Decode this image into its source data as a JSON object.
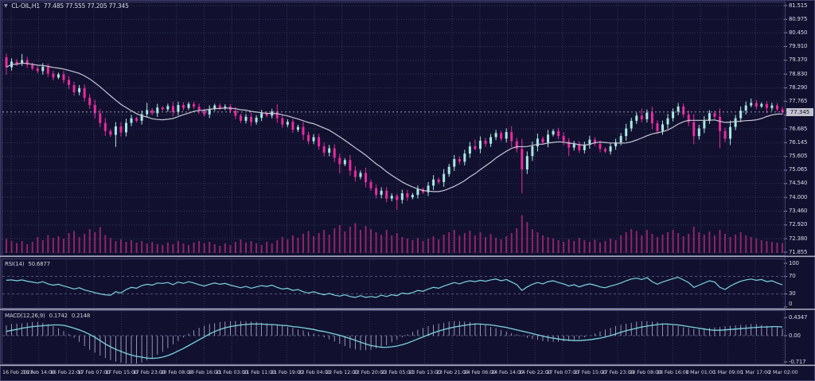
{
  "colors": {
    "background": "#11112f",
    "grid": "#33335c",
    "bull": "#a9e8e0",
    "bear": "#e82b9d",
    "ma_line": "#c6c6d4",
    "volume": "#8f2569",
    "indicator_line": "#7bd4e0",
    "macd_histogram": "#b6b6d4",
    "axis_text": "#9a9ab8",
    "separator": "#a9a9bc",
    "border": "#41416f",
    "level_dashed": "#6a6a98",
    "price_line": "#b0b0c4"
  },
  "header": {
    "symbol_period": "CL-OIL,H1",
    "ohlc_text": "77.485 77.555 77.205 77.345"
  },
  "panes": {
    "rsi": {
      "label": "RSI(14)",
      "value": "50.6877"
    },
    "macd": {
      "label": "MACD(12,26,9)",
      "value_macd": "0.1742",
      "value_signal": "0.2148"
    }
  },
  "price_axis": {
    "current_price": "77.345"
  },
  "chart_data": {
    "type": "candlestick",
    "symbol": "CL-OIL",
    "timeframe": "H1",
    "ohlc_display": {
      "open": 77.485,
      "high": 77.555,
      "low": 77.205,
      "close": 77.345
    },
    "ylim": [
      71.7,
      81.6
    ],
    "grid": true,
    "price_gridlines": [
      81.515,
      80.975,
      80.45,
      79.91,
      79.37,
      78.83,
      78.29,
      77.765,
      77.225,
      76.685,
      76.145,
      75.605,
      75.065,
      74.54,
      74.0,
      73.46,
      72.92,
      72.38,
      71.855
    ],
    "x_labels": [
      "16 Feb 2023",
      "16 Feb 14:00",
      "16 Feb 22:00",
      "17 Feb 07:00",
      "17 Feb 15:00",
      "17 Feb 23:00",
      "20 Feb 08:00",
      "20 Feb 16:00",
      "21 Feb 03:00",
      "21 Feb 11:00",
      "21 Feb 19:00",
      "22 Feb 04:00",
      "22 Feb 12:00",
      "22 Feb 20:00",
      "23 Feb 05:00",
      "23 Feb 13:00",
      "23 Feb 21:00",
      "24 Feb 06:00",
      "24 Feb 14:00",
      "24 Feb 22:00",
      "27 Feb 07:00",
      "27 Feb 15:00",
      "27 Feb 23:00",
      "28 Feb 08:00",
      "28 Feb 16:00",
      "1 Mar 01:00",
      "1 Mar 09:00",
      "1 Mar 17:00",
      "2 Mar 02:00"
    ],
    "ma_period": 14,
    "candles": {
      "first_open": 79.49,
      "closes": [
        79.1,
        79.32,
        79.24,
        79.38,
        79.2,
        79.05,
        78.95,
        79.12,
        78.85,
        78.7,
        78.82,
        78.6,
        78.4,
        78.12,
        78.28,
        77.9,
        77.62,
        77.3,
        76.92,
        76.6,
        76.45,
        76.78,
        76.55,
        76.92,
        77.1,
        77.0,
        77.26,
        77.42,
        77.3,
        77.52,
        77.45,
        77.58,
        77.35,
        77.62,
        77.5,
        77.66,
        77.55,
        77.4,
        77.25,
        77.46,
        77.6,
        77.5,
        77.56,
        77.4,
        77.2,
        77.0,
        77.16,
        76.95,
        77.12,
        77.3,
        77.2,
        77.36,
        77.1,
        76.85,
        76.96,
        76.65,
        76.76,
        76.45,
        76.2,
        76.36,
        76.0,
        75.75,
        75.92,
        75.55,
        75.3,
        75.46,
        75.05,
        74.8,
        74.96,
        74.6,
        74.36,
        74.1,
        74.26,
        73.95,
        74.06,
        73.9,
        74.16,
        74.0,
        74.1,
        74.32,
        74.2,
        74.46,
        74.7,
        74.6,
        74.92,
        75.2,
        75.5,
        75.4,
        75.72,
        76.0,
        75.9,
        76.22,
        76.1,
        76.36,
        76.52,
        76.3,
        76.56,
        76.2,
        75.9,
        75.1,
        75.62,
        76.0,
        76.3,
        76.15,
        76.46,
        76.6,
        76.4,
        76.2,
        75.95,
        76.1,
        75.85,
        76.06,
        76.26,
        76.1,
        75.9,
        75.8,
        76.0,
        76.16,
        76.4,
        76.7,
        77.0,
        77.2,
        77.06,
        77.32,
        76.9,
        76.6,
        76.86,
        77.1,
        77.36,
        77.56,
        77.25,
        76.95,
        76.4,
        76.7,
        77.0,
        77.3,
        77.16,
        76.6,
        76.3,
        76.76,
        77.1,
        77.4,
        77.6,
        77.7,
        77.56,
        77.66,
        77.5,
        77.6,
        77.45,
        77.345
      ],
      "low_spikes": {
        "0": 0.15,
        "21": 0.3,
        "64": 0.2,
        "75": 0.3,
        "99": 0.55,
        "108": 0.2,
        "137": 0.35,
        "146": 0.1
      },
      "high_spikes": {
        "3": 0.15,
        "27": 0.15,
        "52": 0.1,
        "90": 0.2,
        "122": 0.15,
        "143": 0.1
      }
    },
    "volume": [
      0.35,
      0.3,
      0.25,
      0.3,
      0.22,
      0.28,
      0.4,
      0.32,
      0.45,
      0.38,
      0.42,
      0.36,
      0.5,
      0.55,
      0.4,
      0.48,
      0.6,
      0.52,
      0.65,
      0.45,
      0.38,
      0.3,
      0.34,
      0.28,
      0.32,
      0.26,
      0.3,
      0.24,
      0.28,
      0.22,
      0.2,
      0.26,
      0.22,
      0.3,
      0.24,
      0.2,
      0.26,
      0.3,
      0.24,
      0.28,
      0.22,
      0.18,
      0.24,
      0.2,
      0.28,
      0.34,
      0.26,
      0.3,
      0.24,
      0.2,
      0.28,
      0.24,
      0.32,
      0.4,
      0.34,
      0.44,
      0.38,
      0.48,
      0.55,
      0.42,
      0.5,
      0.58,
      0.46,
      0.62,
      0.7,
      0.54,
      0.66,
      0.75,
      0.58,
      0.68,
      0.6,
      0.52,
      0.46,
      0.58,
      0.44,
      0.5,
      0.4,
      0.36,
      0.32,
      0.38,
      0.3,
      0.36,
      0.42,
      0.34,
      0.46,
      0.52,
      0.58,
      0.44,
      0.5,
      0.56,
      0.44,
      0.52,
      0.4,
      0.48,
      0.38,
      0.34,
      0.42,
      0.5,
      0.62,
      0.95,
      0.78,
      0.6,
      0.52,
      0.44,
      0.4,
      0.36,
      0.32,
      0.28,
      0.34,
      0.3,
      0.38,
      0.32,
      0.28,
      0.34,
      0.26,
      0.3,
      0.36,
      0.32,
      0.44,
      0.52,
      0.6,
      0.55,
      0.44,
      0.58,
      0.48,
      0.4,
      0.46,
      0.52,
      0.58,
      0.5,
      0.42,
      0.48,
      0.66,
      0.52,
      0.46,
      0.54,
      0.44,
      0.58,
      0.48,
      0.4,
      0.46,
      0.52,
      0.44,
      0.4,
      0.36,
      0.32,
      0.3,
      0.28,
      0.26,
      0.24
    ],
    "rsi": {
      "period": 14,
      "last": 50.6877,
      "levels": [
        70,
        30
      ],
      "axis_labels": [
        100,
        70,
        30,
        0
      ],
      "values": [
        61,
        62,
        60,
        62,
        59,
        57,
        55,
        58,
        53,
        50,
        52,
        48,
        45,
        41,
        44,
        39,
        36,
        33,
        30,
        28,
        27,
        35,
        32,
        40,
        45,
        43,
        49,
        52,
        50,
        55,
        54,
        56,
        51,
        57,
        54,
        58,
        55,
        51,
        48,
        52,
        55,
        52,
        54,
        50,
        47,
        44,
        47,
        43,
        46,
        49,
        47,
        50,
        45,
        41,
        43,
        38,
        40,
        35,
        32,
        35,
        31,
        28,
        31,
        27,
        25,
        28,
        24,
        22,
        26,
        22,
        24,
        22,
        27,
        24,
        28,
        26,
        32,
        30,
        33,
        38,
        36,
        41,
        45,
        43,
        48,
        52,
        56,
        53,
        57,
        60,
        58,
        61,
        59,
        62,
        64,
        60,
        63,
        57,
        51,
        38,
        46,
        52,
        56,
        53,
        58,
        60,
        56,
        53,
        48,
        51,
        46,
        50,
        53,
        50,
        46,
        44,
        48,
        51,
        55,
        60,
        64,
        66,
        63,
        67,
        58,
        52,
        57,
        61,
        65,
        68,
        62,
        56,
        45,
        50,
        55,
        60,
        57,
        45,
        40,
        48,
        54,
        59,
        62,
        64,
        61,
        63,
        58,
        60,
        55,
        50.7
      ]
    },
    "macd": {
      "fast": 12,
      "slow": 26,
      "signal_period": 9,
      "macd_last": 0.1742,
      "signal_last": 0.2148,
      "axis_labels": [
        "0.4347",
        "0.00",
        "-0.717"
      ],
      "signal_values": [
        0.1,
        0.13,
        0.15,
        0.18,
        0.2,
        0.22,
        0.23,
        0.24,
        0.25,
        0.26,
        0.26,
        0.25,
        0.22,
        0.18,
        0.14,
        0.09,
        0.03,
        -0.04,
        -0.12,
        -0.2,
        -0.27,
        -0.33,
        -0.38,
        -0.43,
        -0.47,
        -0.5,
        -0.52,
        -0.54,
        -0.55,
        -0.54,
        -0.52,
        -0.48,
        -0.43,
        -0.37,
        -0.31,
        -0.24,
        -0.17,
        -0.1,
        -0.03,
        0.04,
        0.1,
        0.15,
        0.19,
        0.22,
        0.24,
        0.26,
        0.27,
        0.28,
        0.28,
        0.28,
        0.27,
        0.27,
        0.26,
        0.25,
        0.24,
        0.22,
        0.21,
        0.19,
        0.17,
        0.15,
        0.12,
        0.1,
        0.07,
        0.04,
        0.01,
        -0.03,
        -0.07,
        -0.11,
        -0.16,
        -0.2,
        -0.24,
        -0.26,
        -0.28,
        -0.28,
        -0.27,
        -0.25,
        -0.22,
        -0.18,
        -0.13,
        -0.08,
        -0.03,
        0.02,
        0.07,
        0.11,
        0.15,
        0.18,
        0.21,
        0.23,
        0.25,
        0.27,
        0.28,
        0.28,
        0.27,
        0.26,
        0.24,
        0.22,
        0.2,
        0.17,
        0.14,
        0.11,
        0.08,
        0.05,
        0.02,
        -0.01,
        -0.04,
        -0.06,
        -0.08,
        -0.1,
        -0.11,
        -0.12,
        -0.12,
        -0.11,
        -0.1,
        -0.08,
        -0.06,
        -0.03,
        0.0,
        0.04,
        0.08,
        0.12,
        0.15,
        0.18,
        0.21,
        0.23,
        0.25,
        0.27,
        0.28,
        0.28,
        0.27,
        0.26,
        0.24,
        0.22,
        0.2,
        0.18,
        0.16,
        0.14,
        0.13,
        0.13,
        0.14,
        0.15,
        0.16,
        0.17,
        0.18,
        0.19,
        0.2,
        0.21,
        0.21,
        0.22,
        0.22,
        0.21
      ],
      "hist_values": [
        0.25,
        0.28,
        0.29,
        0.3,
        0.31,
        0.33,
        0.33,
        0.31,
        0.28,
        0.23,
        0.18,
        0.11,
        0.04,
        -0.05,
        -0.15,
        -0.25,
        -0.34,
        -0.41,
        -0.48,
        -0.54,
        -0.59,
        -0.63,
        -0.65,
        -0.68,
        -0.69,
        -0.68,
        -0.65,
        -0.6,
        -0.54,
        -0.46,
        -0.39,
        -0.3,
        -0.21,
        -0.13,
        -0.04,
        0.05,
        0.13,
        0.19,
        0.24,
        0.28,
        0.3,
        0.33,
        0.34,
        0.35,
        0.35,
        0.35,
        0.34,
        0.34,
        0.33,
        0.31,
        0.3,
        0.28,
        0.26,
        0.24,
        0.21,
        0.19,
        0.15,
        0.13,
        0.09,
        0.05,
        0.01,
        -0.04,
        -0.09,
        -0.14,
        -0.2,
        -0.25,
        -0.3,
        -0.33,
        -0.35,
        -0.35,
        -0.34,
        -0.31,
        -0.28,
        -0.23,
        -0.16,
        -0.1,
        -0.04,
        0.03,
        0.09,
        0.14,
        0.19,
        0.23,
        0.26,
        0.29,
        0.31,
        0.34,
        0.35,
        0.35,
        0.34,
        0.33,
        0.3,
        0.28,
        0.25,
        0.21,
        0.18,
        0.14,
        0.1,
        0.06,
        0.03,
        -0.01,
        -0.05,
        -0.08,
        -0.1,
        -0.13,
        -0.14,
        -0.15,
        -0.15,
        -0.14,
        -0.13,
        -0.1,
        -0.08,
        -0.04,
        0.0,
        0.05,
        0.1,
        0.15,
        0.19,
        0.23,
        0.26,
        0.29,
        0.31,
        0.34,
        0.35,
        0.35,
        0.34,
        0.33,
        0.3,
        0.28,
        0.25,
        0.23,
        0.2,
        0.18,
        0.16,
        0.16,
        0.18,
        0.19,
        0.2,
        0.21,
        0.23,
        0.24,
        0.25,
        0.26,
        0.26,
        0.28,
        0.28,
        0.26,
        0.24,
        0.22,
        0.2,
        0.17
      ]
    }
  }
}
